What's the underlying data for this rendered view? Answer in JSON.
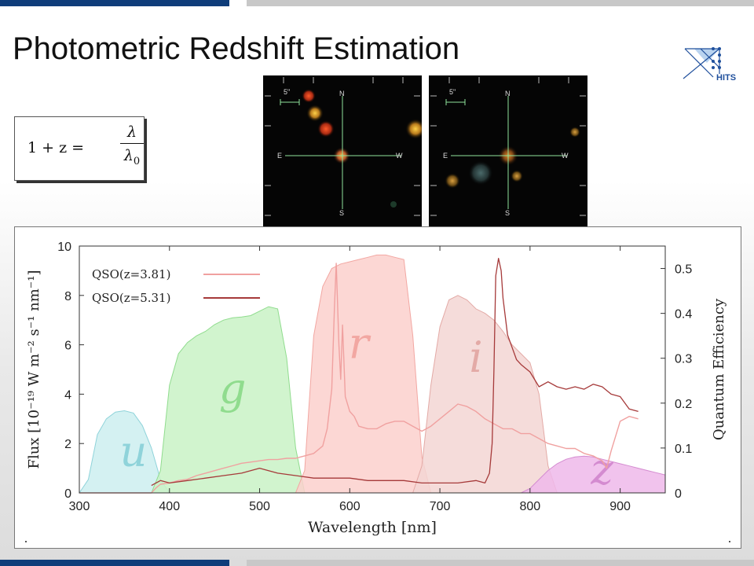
{
  "title": "Photometric Redshift Estimation",
  "logo": {
    "text": "HITS",
    "color": "#1f4f9c"
  },
  "formula": {
    "lhs": "1 + z =",
    "numerator": "λ",
    "denominator": "λ",
    "denominator_sub": "0"
  },
  "images": [
    {
      "scale_label": "5\"",
      "north": "N",
      "south": "S",
      "east": "E",
      "west": "W"
    },
    {
      "scale_label": "5\"",
      "north": "N",
      "south": "S",
      "east": "E",
      "west": "W"
    }
  ],
  "chart_data": {
    "type": "line",
    "xlabel": "Wavelength [nm]",
    "ylabel": "Flux [10⁻¹⁹ W m⁻² s⁻¹ nm⁻¹]",
    "y2label": "Quantum Efficiency",
    "xlim": [
      300,
      950
    ],
    "ylim": [
      0,
      10
    ],
    "y2lim": [
      0,
      0.55
    ],
    "x_ticks": [
      300,
      400,
      500,
      600,
      700,
      800,
      900
    ],
    "y_ticks": [
      0,
      2,
      4,
      6,
      8,
      10
    ],
    "y2_ticks": [
      0,
      0.1,
      0.2,
      0.3,
      0.4,
      0.5
    ],
    "legend_position": "top-left",
    "filters": [
      {
        "name": "u",
        "color": "#cdeef0",
        "edge": "#8fd3da",
        "label_x": 360,
        "label_qe": 0.06,
        "x": [
          300,
          310,
          320,
          330,
          340,
          350,
          360,
          370,
          380,
          390,
          400
        ],
        "qe": [
          0.0,
          0.03,
          0.13,
          0.165,
          0.18,
          0.183,
          0.178,
          0.15,
          0.1,
          0.03,
          0.0
        ]
      },
      {
        "name": "g",
        "color": "#c9f2c6",
        "edge": "#90dc8e",
        "label_x": 470,
        "label_qe": 0.2,
        "x": [
          380,
          390,
          400,
          410,
          420,
          430,
          440,
          450,
          460,
          470,
          480,
          490,
          500,
          510,
          520,
          530,
          540,
          550
        ],
        "qe": [
          0.0,
          0.05,
          0.24,
          0.31,
          0.335,
          0.35,
          0.36,
          0.375,
          0.385,
          0.39,
          0.392,
          0.395,
          0.405,
          0.415,
          0.41,
          0.3,
          0.1,
          0.0
        ]
      },
      {
        "name": "r",
        "color": "#fbd0cd",
        "edge": "#f2a7a2",
        "label_x": 610,
        "label_qe": 0.3,
        "x": [
          540,
          550,
          560,
          570,
          580,
          590,
          600,
          610,
          620,
          630,
          640,
          650,
          660,
          670,
          680,
          690
        ],
        "qe": [
          0.0,
          0.05,
          0.35,
          0.46,
          0.5,
          0.51,
          0.515,
          0.52,
          0.525,
          0.53,
          0.53,
          0.525,
          0.52,
          0.35,
          0.08,
          0.0
        ]
      },
      {
        "name": "i",
        "color": "#f3d6d4",
        "edge": "#e3aaa6",
        "label_x": 740,
        "label_qe": 0.27,
        "x": [
          670,
          680,
          690,
          700,
          710,
          720,
          730,
          740,
          750,
          760,
          770,
          780,
          790,
          800,
          810,
          820,
          830
        ],
        "qe": [
          0.0,
          0.06,
          0.24,
          0.37,
          0.43,
          0.44,
          0.43,
          0.41,
          0.4,
          0.385,
          0.36,
          0.33,
          0.31,
          0.29,
          0.22,
          0.06,
          0.0
        ]
      },
      {
        "name": "z",
        "color": "#efb8ea",
        "edge": "#d48bd0",
        "label_x": 880,
        "label_qe": 0.02,
        "x": [
          790,
          800,
          810,
          820,
          830,
          840,
          850,
          860,
          870,
          880,
          890,
          900,
          910,
          920,
          930,
          940,
          950
        ],
        "qe": [
          0.0,
          0.01,
          0.03,
          0.05,
          0.065,
          0.075,
          0.08,
          0.082,
          0.08,
          0.075,
          0.07,
          0.065,
          0.06,
          0.055,
          0.05,
          0.045,
          0.04
        ]
      }
    ],
    "series": [
      {
        "name": "QSO(z=3.81)",
        "color": "#f0a1a0",
        "width": 1.4,
        "x": [
          300,
          380,
          385,
          390,
          400,
          410,
          420,
          430,
          440,
          450,
          460,
          470,
          480,
          490,
          500,
          510,
          520,
          530,
          540,
          550,
          560,
          570,
          575,
          580,
          583,
          585,
          588,
          590,
          592,
          595,
          600,
          605,
          610,
          620,
          630,
          640,
          650,
          660,
          670,
          680,
          690,
          700,
          710,
          720,
          730,
          740,
          750,
          760,
          770,
          780,
          790,
          800,
          810,
          820,
          830,
          840,
          850,
          860,
          870,
          880,
          885,
          890,
          900,
          910,
          920
        ],
        "values": [
          0,
          0,
          0.2,
          0.35,
          0.4,
          0.5,
          0.55,
          0.7,
          0.8,
          0.9,
          1.0,
          1.1,
          1.2,
          1.25,
          1.3,
          1.35,
          1.35,
          1.4,
          1.4,
          1.5,
          1.6,
          1.9,
          2.6,
          4.2,
          7.5,
          9.3,
          6.0,
          4.6,
          6.8,
          3.9,
          3.3,
          3.1,
          2.7,
          2.6,
          2.6,
          2.8,
          2.9,
          2.9,
          2.7,
          2.5,
          2.7,
          3.0,
          3.3,
          3.6,
          3.5,
          3.3,
          3.0,
          2.8,
          2.6,
          2.6,
          2.4,
          2.4,
          2.2,
          2.0,
          1.9,
          1.8,
          1.8,
          1.6,
          1.5,
          1.3,
          1.0,
          1.7,
          2.9,
          3.1,
          3.0
        ]
      },
      {
        "name": "QSO(z=5.31)",
        "color": "#a63a3a",
        "width": 1.3,
        "x": [
          380,
          390,
          400,
          420,
          440,
          460,
          480,
          500,
          520,
          540,
          560,
          580,
          600,
          620,
          640,
          660,
          680,
          700,
          720,
          740,
          750,
          755,
          758,
          760,
          762,
          765,
          768,
          770,
          775,
          780,
          785,
          790,
          800,
          810,
          820,
          830,
          840,
          850,
          860,
          870,
          880,
          890,
          900,
          910,
          920
        ],
        "values": [
          0.3,
          0.5,
          0.4,
          0.5,
          0.6,
          0.7,
          0.8,
          1.0,
          0.8,
          0.7,
          0.6,
          0.6,
          0.6,
          0.5,
          0.5,
          0.5,
          0.4,
          0.4,
          0.4,
          0.5,
          0.4,
          0.8,
          2.0,
          5.0,
          8.8,
          9.5,
          9.0,
          7.9,
          6.4,
          5.9,
          5.4,
          5.2,
          4.9,
          4.3,
          4.5,
          4.3,
          4.2,
          4.3,
          4.2,
          4.4,
          4.3,
          4.0,
          3.9,
          3.4,
          3.3
        ]
      }
    ]
  }
}
